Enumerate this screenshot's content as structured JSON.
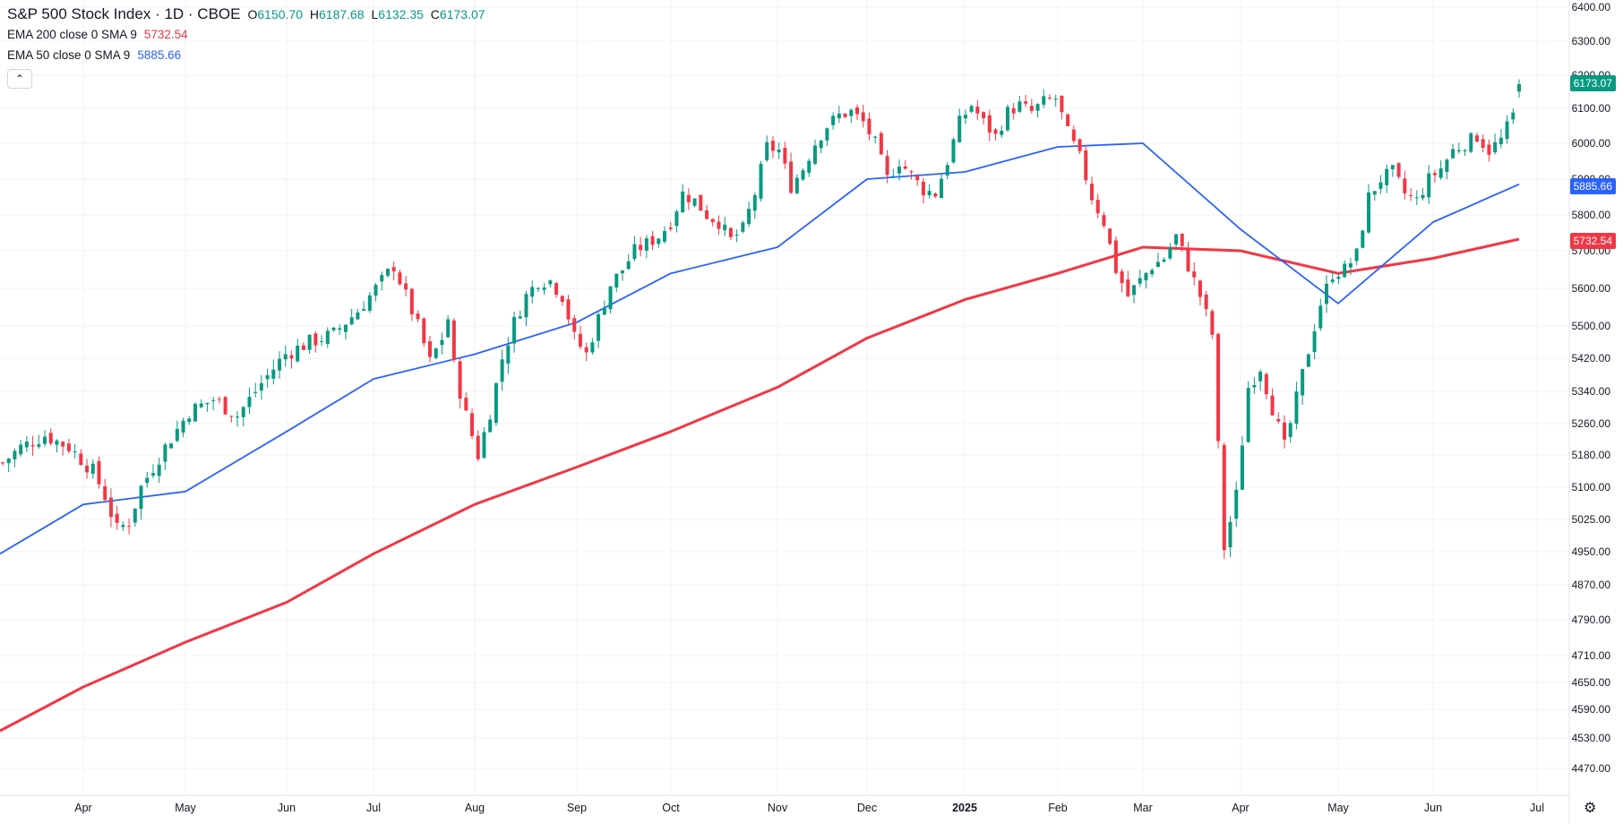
{
  "header": {
    "symbol": "S&P 500 Stock Index · 1D · CBOE",
    "open_label": "O",
    "open": "6150.70",
    "high_label": "H",
    "high": "6187.68",
    "low_label": "L",
    "low": "6132.35",
    "close_label": "C",
    "close": "6173.07"
  },
  "indicators": [
    {
      "label": "EMA 200 close 0 SMA 9",
      "value": "5732.54",
      "color": "#f23645"
    },
    {
      "label": "EMA 50 close 0 SMA 9",
      "value": "5885.66",
      "color": "#2962ff"
    }
  ],
  "collapse_icon": "chevron-up-icon",
  "settings_icon": "gear-icon",
  "price_badges": {
    "last": {
      "value": "6173.07",
      "color": "#089981"
    },
    "ema50": {
      "value": "5885.66",
      "color": "#2962ff"
    },
    "ema200": {
      "value": "5732.54",
      "color": "#f23645"
    }
  },
  "chart_data": {
    "type": "candlestick",
    "title": "S&P 500 Stock Index · 1D · CBOE",
    "y_ticks": [
      6400,
      6300,
      6200,
      6100,
      6000,
      5900,
      5800,
      5700,
      5600,
      5500,
      5420,
      5340,
      5260,
      5180,
      5100,
      5025,
      4950,
      4870,
      4790,
      4710,
      4650,
      4590,
      4530,
      4470
    ],
    "x_labels": [
      "Apr",
      "May",
      "Jun",
      "Jul",
      "Aug",
      "Sep",
      "Oct",
      "Nov",
      "Dec",
      "2025",
      "Feb",
      "Mar",
      "Apr",
      "May",
      "Jun",
      "Jul"
    ],
    "series": [
      {
        "name": "EMA 200 close 0 SMA 9",
        "color": "#f23645",
        "points": [
          [
            "Mar 2024",
            4545
          ],
          [
            "Apr 2024",
            4640
          ],
          [
            "May 2024",
            4740
          ],
          [
            "Jun 2024",
            4830
          ],
          [
            "Jul 2024",
            4945
          ],
          [
            "Aug 2024",
            5060
          ],
          [
            "Sep 2024",
            5150
          ],
          [
            "Oct 2024",
            5240
          ],
          [
            "Nov 2024",
            5350
          ],
          [
            "Dec 2024",
            5470
          ],
          [
            "Jan 2025",
            5570
          ],
          [
            "Feb 2025",
            5640
          ],
          [
            "Mar 2025",
            5710
          ],
          [
            "Apr 2025",
            5700
          ],
          [
            "May 2025",
            5640
          ],
          [
            "Jun 2025",
            5680
          ],
          [
            "Jun 27 2025",
            5732.54
          ]
        ]
      },
      {
        "name": "EMA 50 close 0 SMA 9",
        "color": "#2962ff",
        "points": [
          [
            "Mar 2024",
            4945
          ],
          [
            "Apr 2024",
            5060
          ],
          [
            "May 2024",
            5090
          ],
          [
            "Jun 2024",
            5240
          ],
          [
            "Jul 2024",
            5370
          ],
          [
            "Aug 2024",
            5430
          ],
          [
            "Sep 2024",
            5510
          ],
          [
            "Oct 2024",
            5640
          ],
          [
            "Nov 2024",
            5710
          ],
          [
            "Dec 2024",
            5900
          ],
          [
            "Jan 2025",
            5920
          ],
          [
            "Feb 2025",
            5990
          ],
          [
            "Mar 2025",
            6000
          ],
          [
            "Apr 2025",
            5760
          ],
          [
            "May 2025",
            5560
          ],
          [
            "Jun 2025",
            5780
          ],
          [
            "Jun 27 2025",
            5885.66
          ]
        ]
      }
    ],
    "price_path": [
      [
        0,
        5160
      ],
      [
        3,
        5200
      ],
      [
        7,
        5230
      ],
      [
        11,
        5200
      ],
      [
        15,
        5140
      ],
      [
        17,
        5080
      ],
      [
        19,
        5000
      ],
      [
        21,
        5020
      ],
      [
        23,
        5100
      ],
      [
        27,
        5200
      ],
      [
        31,
        5290
      ],
      [
        35,
        5320
      ],
      [
        39,
        5280
      ],
      [
        43,
        5360
      ],
      [
        47,
        5430
      ],
      [
        51,
        5460
      ],
      [
        55,
        5480
      ],
      [
        59,
        5540
      ],
      [
        63,
        5620
      ],
      [
        65,
        5660
      ],
      [
        67,
        5580
      ],
      [
        69,
        5500
      ],
      [
        71,
        5410
      ],
      [
        73,
        5470
      ],
      [
        74,
        5520
      ],
      [
        75,
        5400
      ],
      [
        77,
        5280
      ],
      [
        79,
        5180
      ],
      [
        81,
        5290
      ],
      [
        83,
        5420
      ],
      [
        85,
        5510
      ],
      [
        87,
        5580
      ],
      [
        89,
        5620
      ],
      [
        91,
        5620
      ],
      [
        93,
        5580
      ],
      [
        95,
        5470
      ],
      [
        97,
        5430
      ],
      [
        99,
        5520
      ],
      [
        101,
        5610
      ],
      [
        103,
        5650
      ],
      [
        105,
        5700
      ],
      [
        107,
        5720
      ],
      [
        109,
        5740
      ],
      [
        111,
        5780
      ],
      [
        113,
        5860
      ],
      [
        115,
        5840
      ],
      [
        117,
        5800
      ],
      [
        119,
        5780
      ],
      [
        121,
        5730
      ],
      [
        123,
        5760
      ],
      [
        125,
        5860
      ],
      [
        127,
        5990
      ],
      [
        129,
        5980
      ],
      [
        131,
        5880
      ],
      [
        133,
        5930
      ],
      [
        135,
        6000
      ],
      [
        137,
        6050
      ],
      [
        139,
        6080
      ],
      [
        141,
        6090
      ],
      [
        143,
        6060
      ],
      [
        145,
        6000
      ],
      [
        147,
        5900
      ],
      [
        149,
        5950
      ],
      [
        151,
        5910
      ],
      [
        153,
        5870
      ],
      [
        155,
        5860
      ],
      [
        157,
        5950
      ],
      [
        159,
        6060
      ],
      [
        161,
        6110
      ],
      [
        163,
        6060
      ],
      [
        165,
        6020
      ],
      [
        167,
        6090
      ],
      [
        169,
        6110
      ],
      [
        171,
        6090
      ],
      [
        173,
        6120
      ],
      [
        175,
        6130
      ],
      [
        177,
        6030
      ],
      [
        179,
        5960
      ],
      [
        181,
        5850
      ],
      [
        183,
        5780
      ],
      [
        185,
        5650
      ],
      [
        187,
        5580
      ],
      [
        189,
        5620
      ],
      [
        191,
        5660
      ],
      [
        193,
        5680
      ],
      [
        195,
        5740
      ],
      [
        197,
        5660
      ],
      [
        199,
        5580
      ],
      [
        201,
        5480
      ],
      [
        202,
        5200
      ],
      [
        203,
        4960
      ],
      [
        205,
        5080
      ],
      [
        207,
        5350
      ],
      [
        209,
        5400
      ],
      [
        211,
        5300
      ],
      [
        213,
        5200
      ],
      [
        215,
        5320
      ],
      [
        217,
        5440
      ],
      [
        219,
        5560
      ],
      [
        221,
        5640
      ],
      [
        223,
        5650
      ],
      [
        225,
        5690
      ],
      [
        227,
        5850
      ],
      [
        229,
        5900
      ],
      [
        231,
        5920
      ],
      [
        233,
        5860
      ],
      [
        235,
        5840
      ],
      [
        237,
        5900
      ],
      [
        239,
        5930
      ],
      [
        241,
        5980
      ],
      [
        243,
        6000
      ],
      [
        245,
        6020
      ],
      [
        247,
        5980
      ],
      [
        249,
        6010
      ],
      [
        251,
        6080
      ],
      [
        252,
        6173
      ]
    ]
  }
}
